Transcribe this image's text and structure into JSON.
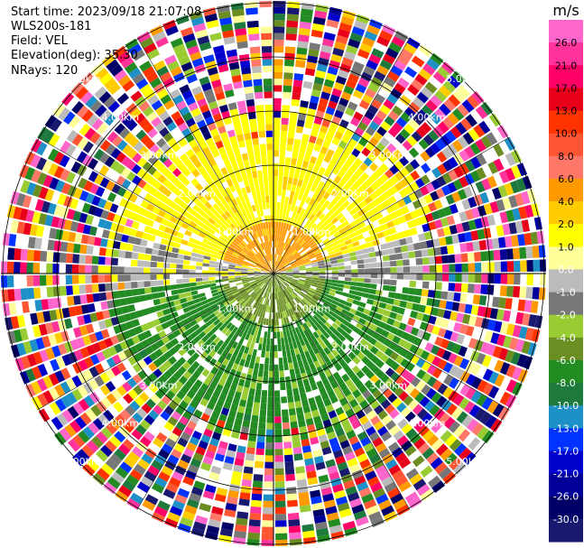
{
  "info": {
    "start_time": "Start time: 2023/09/18 21:07:08",
    "instrument": "WLS200s-181",
    "field": "Field: VEL",
    "elevation": "Elevation(deg): 35.30",
    "nrays": "NRays: 120"
  },
  "colorbar": {
    "unit": "m/s",
    "levels": [
      {
        "label": "",
        "color": "#ff66cc"
      },
      {
        "label": "26.0",
        "color": "#ff3399"
      },
      {
        "label": "21.0",
        "color": "#ff0066"
      },
      {
        "label": "17.0",
        "color": "#e8001a"
      },
      {
        "label": "13.0",
        "color": "#ff3300"
      },
      {
        "label": "10.0",
        "color": "#ff5533"
      },
      {
        "label": "8.0",
        "color": "#ff7766"
      },
      {
        "label": "6.0",
        "color": "#ff9900"
      },
      {
        "label": "4.0",
        "color": "#ffcc00"
      },
      {
        "label": "2.0",
        "color": "#ffff00"
      },
      {
        "label": "1.0",
        "color": "#ffff99"
      },
      {
        "label": "0.0",
        "color": "#bbbbbb"
      },
      {
        "label": "-1.0",
        "color": "#777777"
      },
      {
        "label": "-2.0",
        "color": "#99cc33"
      },
      {
        "label": "-4.0",
        "color": "#6b8e23"
      },
      {
        "label": "-6.0",
        "color": "#228b22"
      },
      {
        "label": "-8.0",
        "color": "#1e7a3c"
      },
      {
        "label": "-10.0",
        "color": "#1e90c8"
      },
      {
        "label": "-13.0",
        "color": "#0033ff"
      },
      {
        "label": "-17.0",
        "color": "#0000cc"
      },
      {
        "label": "-21.0",
        "color": "#000099"
      },
      {
        "label": "-26.0",
        "color": "#000066"
      },
      {
        "label": "-30.0",
        "color": "#191970"
      }
    ]
  },
  "rings": {
    "labels": [
      "1.00km",
      "2.00km",
      "3.00km",
      "4.00km",
      "5.00km"
    ]
  }
}
